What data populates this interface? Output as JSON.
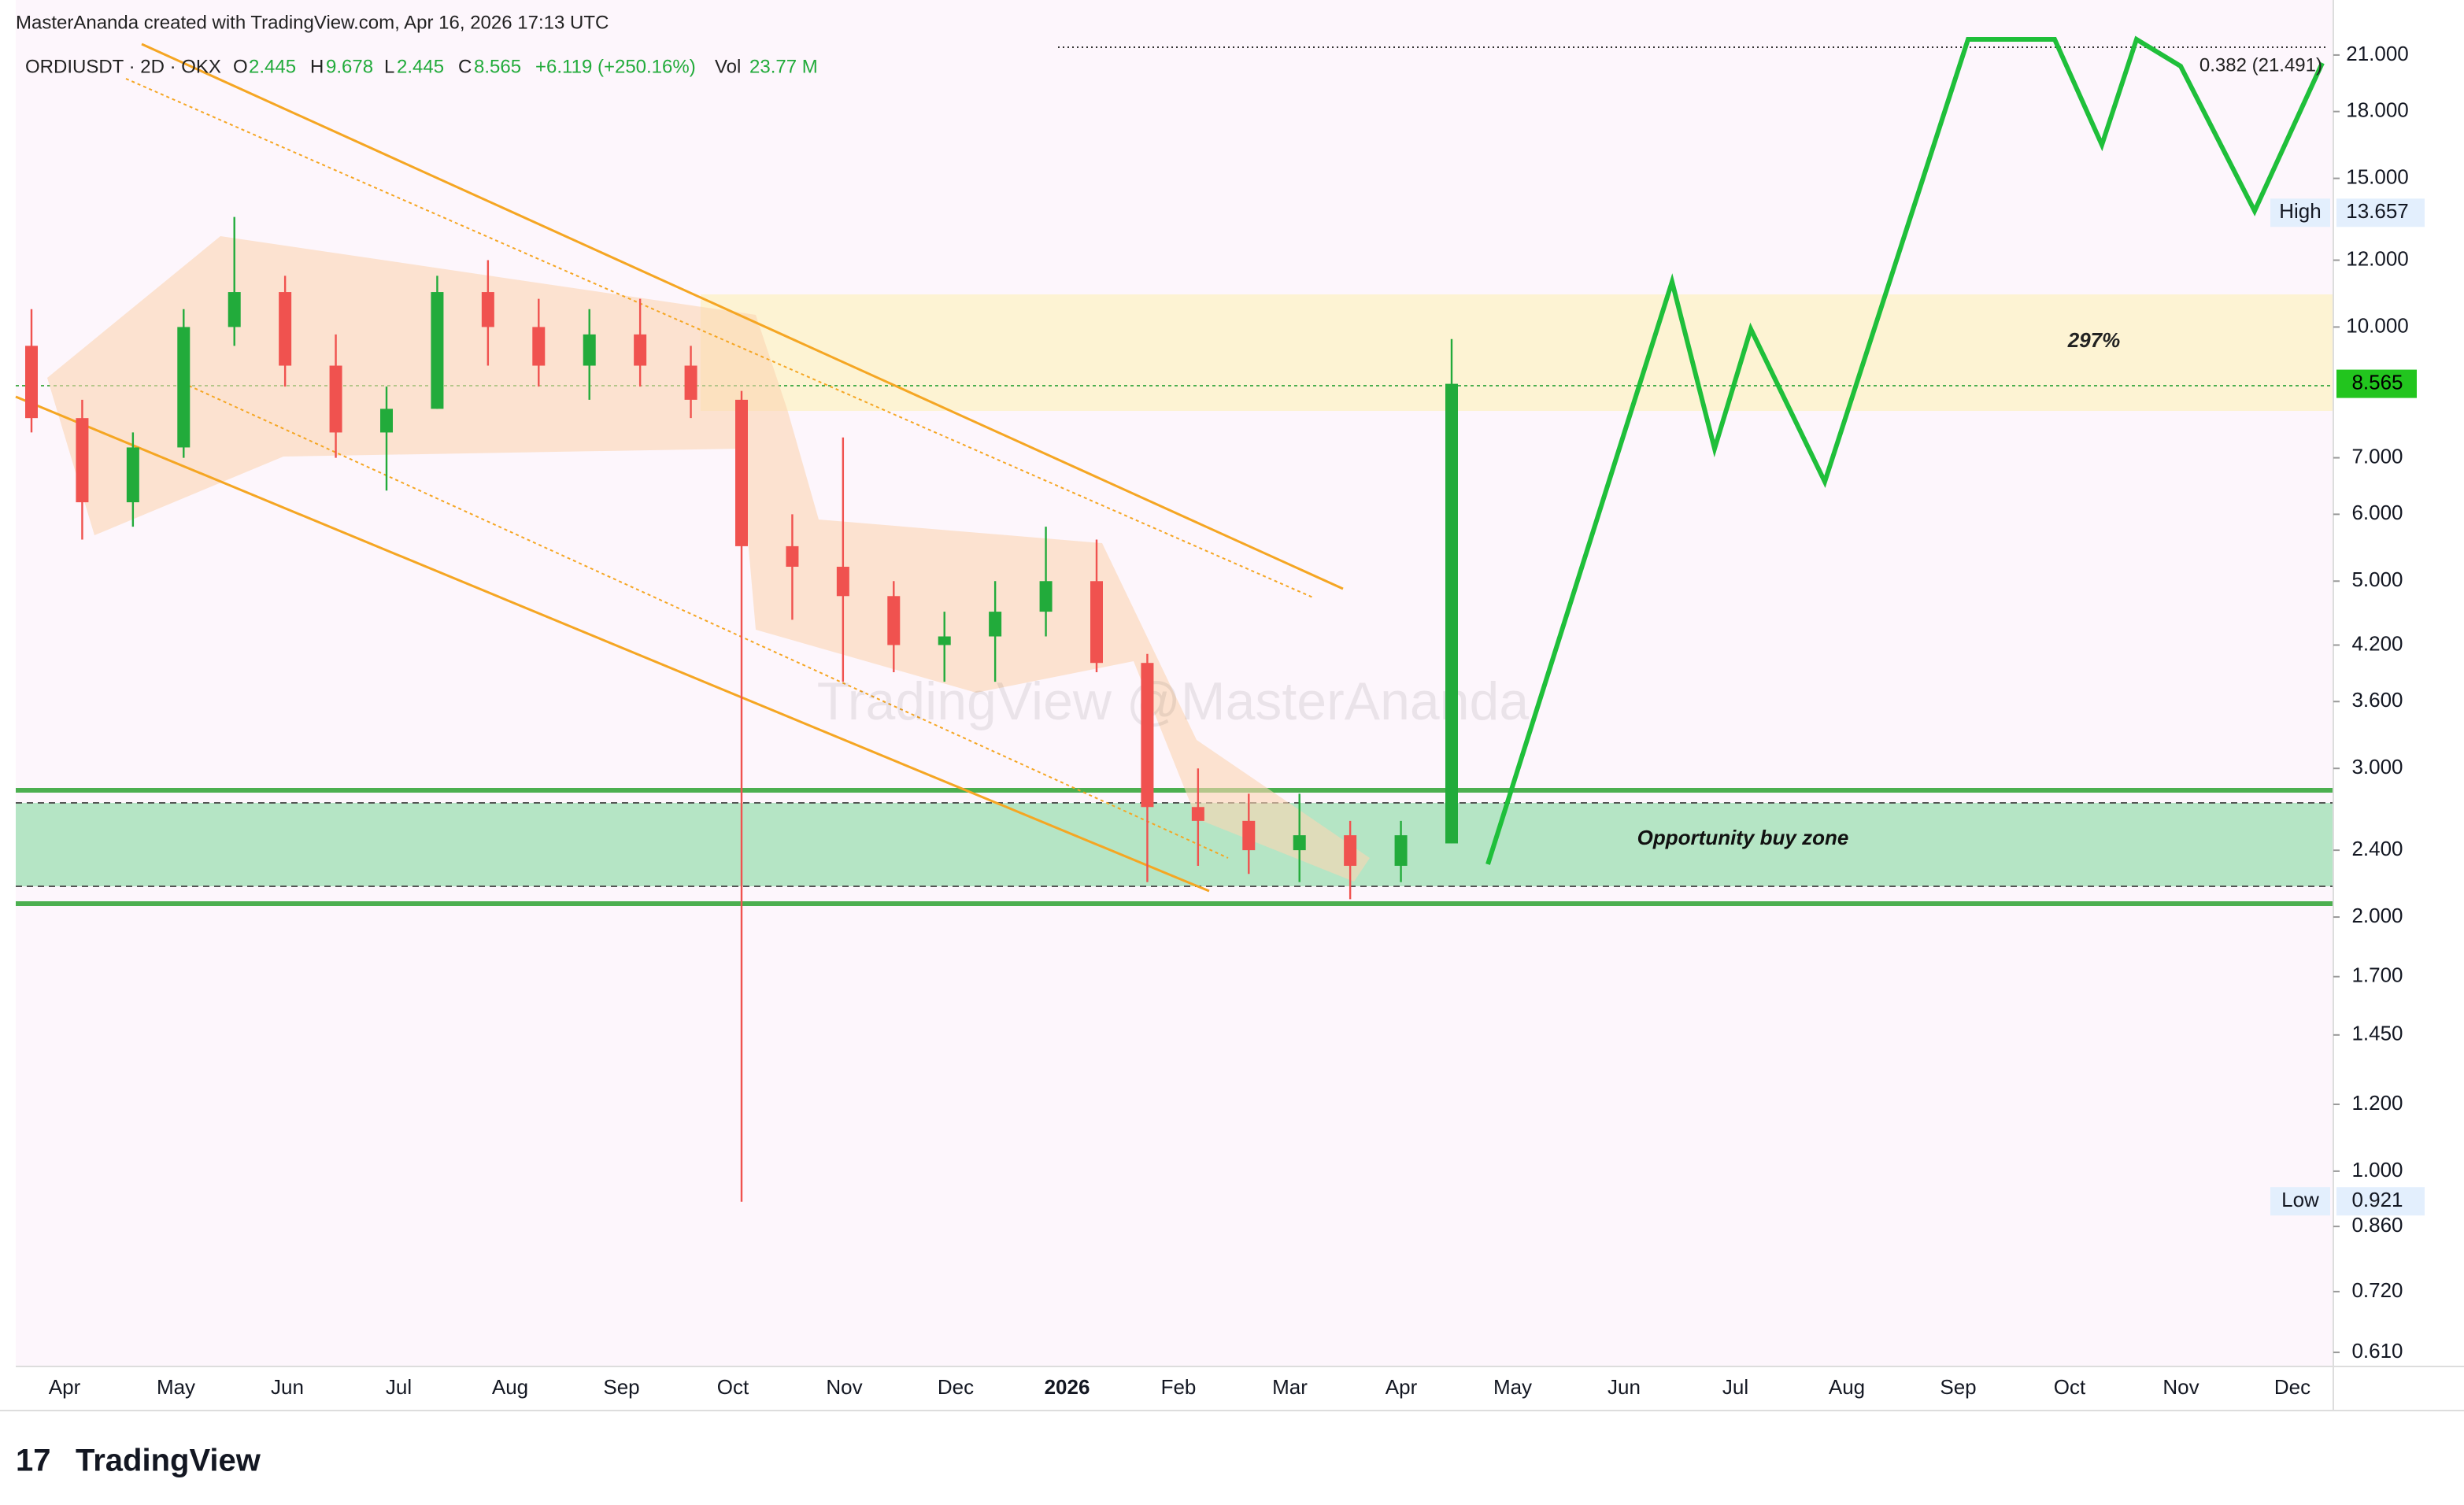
{
  "header": {
    "credit": "MasterAnanda created with TradingView.com, Apr 16, 2026 17:13 UTC"
  },
  "legend": {
    "symbol": "ORDIUSDT · 2D · OKX",
    "o_key": "O",
    "o": "2.445",
    "h_key": "H",
    "h": "9.678",
    "l_key": "L",
    "l": "2.445",
    "c_key": "C",
    "c": "8.565",
    "change": "+6.119 (+250.16%)",
    "vol_key": "Vol",
    "vol": "23.77 M"
  },
  "chart": {
    "type": "candlestick",
    "log_scale": true,
    "ylim": [
      0.587,
      24.4
    ],
    "yticks": [
      {
        "value": 21,
        "label": "21.000"
      },
      {
        "value": 18,
        "label": "18.000"
      },
      {
        "value": 15,
        "label": "15.000"
      },
      {
        "value": 12,
        "label": "12.000"
      },
      {
        "value": 10,
        "label": "10.000"
      },
      {
        "value": 7,
        "label": "7.000"
      },
      {
        "value": 6,
        "label": "6.000"
      },
      {
        "value": 5,
        "label": "5.000"
      },
      {
        "value": 4.2,
        "label": "4.200"
      },
      {
        "value": 3.6,
        "label": "3.600"
      },
      {
        "value": 3,
        "label": "3.000"
      },
      {
        "value": 2.4,
        "label": "2.400"
      },
      {
        "value": 2,
        "label": "2.000"
      },
      {
        "value": 1.7,
        "label": "1.700"
      },
      {
        "value": 1.45,
        "label": "1.450"
      },
      {
        "value": 1.2,
        "label": "1.200"
      },
      {
        "value": 1,
        "label": "1.000"
      },
      {
        "value": 0.86,
        "label": "0.860"
      },
      {
        "value": 0.72,
        "label": "0.720"
      },
      {
        "value": 0.61,
        "label": "0.610"
      }
    ],
    "categories": [
      "Apr",
      "May",
      "Jun",
      "Jul",
      "Aug",
      "Sep",
      "Oct",
      "Nov",
      "Dec",
      "2026",
      "Feb",
      "Mar",
      "Apr",
      "May",
      "Jun",
      "Jul",
      "Aug",
      "Sep",
      "Oct",
      "Nov",
      "Dec"
    ],
    "up_color": "#22ab3b",
    "down_color": "#f0524f",
    "candles": [
      [
        9.5,
        10.5,
        7.5,
        7.8
      ],
      [
        7.8,
        8.2,
        5.6,
        6.2
      ],
      [
        6.2,
        7.5,
        5.8,
        7.2
      ],
      [
        7.2,
        10.5,
        7,
        10
      ],
      [
        10,
        13.5,
        9.5,
        11
      ],
      [
        11,
        11.5,
        8.5,
        9
      ],
      [
        9,
        9.8,
        7,
        7.5
      ],
      [
        7.5,
        8.5,
        6.4,
        8
      ],
      [
        8,
        11.5,
        8,
        11
      ],
      [
        11,
        12,
        9,
        10
      ],
      [
        10,
        10.8,
        8.5,
        9
      ],
      [
        9,
        10.5,
        8.2,
        9.8
      ],
      [
        9.8,
        10.8,
        8.5,
        9
      ],
      [
        9,
        9.5,
        7.8,
        8.2
      ],
      [
        8.2,
        8.4,
        0.92,
        5.5
      ],
      [
        5.5,
        6,
        4.5,
        5.2
      ],
      [
        5.2,
        7.4,
        3.8,
        4.8
      ],
      [
        4.8,
        5,
        3.9,
        4.2
      ],
      [
        4.2,
        4.6,
        3.8,
        4.3
      ],
      [
        4.3,
        5,
        3.8,
        4.6
      ],
      [
        4.6,
        5.8,
        4.3,
        5
      ],
      [
        5,
        5.6,
        3.9,
        4
      ],
      [
        4,
        4.1,
        2.2,
        2.7
      ],
      [
        2.7,
        3,
        2.3,
        2.6
      ],
      [
        2.6,
        2.8,
        2.25,
        2.4
      ],
      [
        2.4,
        2.8,
        2.2,
        2.5
      ],
      [
        2.5,
        2.6,
        2.1,
        2.3
      ],
      [
        2.3,
        2.6,
        2.2,
        2.5
      ],
      [
        2.445,
        9.678,
        2.445,
        8.565
      ]
    ],
    "markers": {
      "last": {
        "value": 8.565,
        "label": "8.565"
      },
      "high": {
        "name": "High",
        "value": 13.657,
        "label": "13.657"
      },
      "low": {
        "name": "Low",
        "value": 0.921,
        "label": "0.921"
      }
    }
  },
  "annotations": {
    "fib": "0.382 (21.491)",
    "target": "297%",
    "zone": "Opportunity buy zone",
    "watermark": "TradingView @MasterAnanda"
  },
  "logo": "TradingView"
}
